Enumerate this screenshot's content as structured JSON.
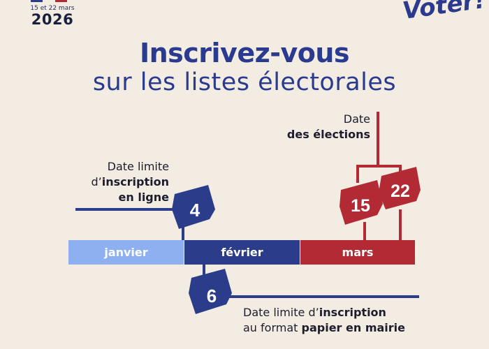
{
  "header": {
    "election_dates": "15 et 22 mars",
    "year": "2026",
    "brand": "Voter!"
  },
  "title": {
    "line1": "Inscrivez-vous",
    "line2": "sur les listes électorales"
  },
  "online_deadline": {
    "line1": "Date limite",
    "line2_prefix": "d’",
    "line2_bold": "inscription",
    "line3_bold": "en ligne",
    "day": "4"
  },
  "paper_deadline": {
    "line1_prefix": "Date limite d’",
    "line1_bold": "inscription",
    "line2_prefix": "au format ",
    "line2_bold": "papier en mairie",
    "day": "6"
  },
  "elections": {
    "line1": "Date",
    "line2_bold": "des élections",
    "round1_day": "15",
    "round2_day": "22"
  },
  "months": [
    {
      "label": "janvier",
      "color": "#8fb0f0"
    },
    {
      "label": "février",
      "color": "#2b3c8a"
    },
    {
      "label": "mars",
      "color": "#b22a33"
    }
  ],
  "colors": {
    "blue": "#2b3c8a",
    "red": "#b22a33",
    "light_blue": "#8fb0f0",
    "background": "#f2ece3"
  }
}
